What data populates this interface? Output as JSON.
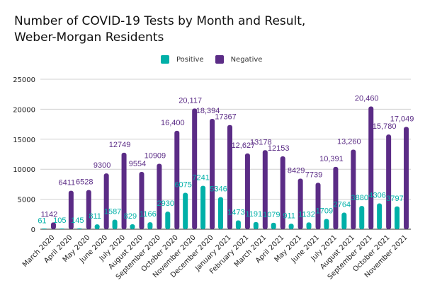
{
  "chart_data": {
    "type": "bar",
    "title": "Number of COVID-19 Tests by Month and Result, Weber-Morgan Residents",
    "title_lines": [
      "Number of COVID-19 Tests by Month and Result,",
      "Weber-Morgan Residents"
    ],
    "xlabel": "",
    "ylabel": "",
    "ylim": [
      0,
      25000
    ],
    "yticks": [
      0,
      5000,
      10000,
      15000,
      20000,
      25000
    ],
    "grid": true,
    "legend_position": "top-center",
    "categories": [
      "March 2020",
      "April 2020",
      "May 2020",
      "June 2020",
      "July 2020",
      "August 2020",
      "September 2020",
      "October 2020",
      "November 2020",
      "December 2020",
      "January 2021",
      "February 2021",
      "March 2021",
      "April 2021",
      "May 2021",
      "June 2021",
      "July 2021",
      "August 2021",
      "September 2021",
      "October 2021",
      "November 2021"
    ],
    "series": [
      {
        "name": "Positive",
        "color": "#00b0a8",
        "values": [
          61,
          105,
          145,
          811,
          1587,
          829,
          1166,
          2930,
          6075,
          7241,
          5346,
          1473,
          1191,
          1079,
          911,
          1132,
          1709,
          2764,
          3880,
          4306,
          3797
        ],
        "labels": [
          "61",
          "105",
          "145",
          "811",
          "1587",
          "829",
          "1166",
          "2930",
          "6075",
          "7241",
          "5346",
          "1473",
          "1191",
          "1079",
          "911",
          "1132",
          "1709",
          "2764",
          "3880",
          "4306",
          "3797"
        ]
      },
      {
        "name": "Negative",
        "color": "#5b2c86",
        "values": [
          1142,
          6411,
          6528,
          9300,
          12749,
          9554,
          10909,
          16400,
          20117,
          18394,
          17367,
          12627,
          13178,
          12153,
          8429,
          7739,
          10391,
          13260,
          20460,
          15780,
          17049
        ],
        "labels": [
          "1142",
          "6411",
          "6528",
          "9300",
          "12749",
          "9554",
          "10909",
          "16,400",
          "20,117",
          "18,394",
          "17367",
          "12,627",
          "13178",
          "12153",
          "8429",
          "7739",
          "10,391",
          "13,260",
          "20,460",
          "15,780",
          "17,049"
        ]
      }
    ]
  }
}
